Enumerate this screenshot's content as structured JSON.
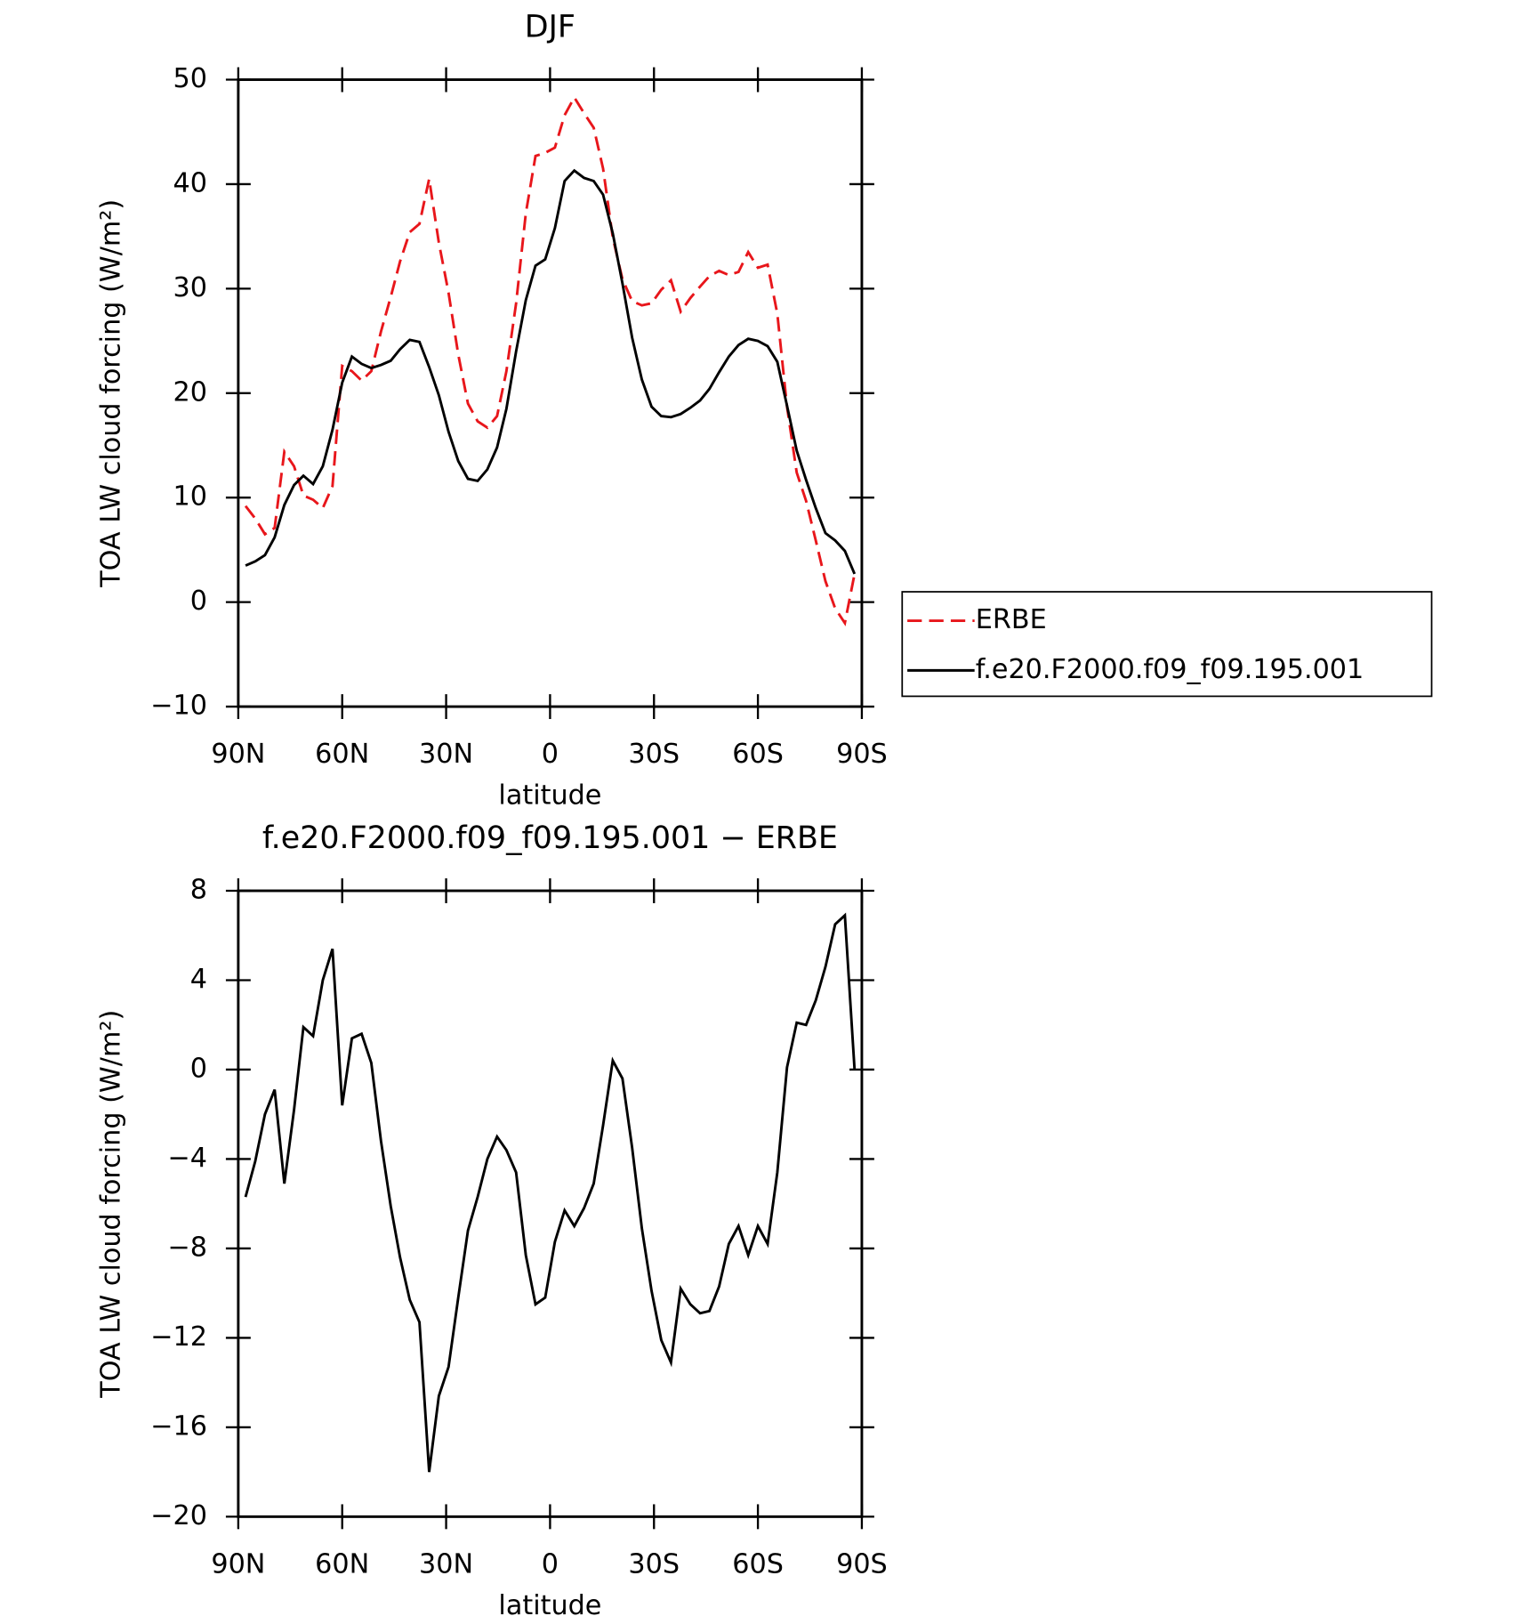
{
  "chart_data": [
    {
      "type": "line",
      "title": "DJF",
      "xlabel": "latitude",
      "ylabel": "TOA LW cloud forcing (W/m²)",
      "x": [
        87.9,
        85.1,
        82.3,
        79.5,
        76.7,
        73.9,
        71.2,
        68.4,
        65.6,
        62.8,
        60.0,
        57.2,
        54.4,
        51.6,
        48.8,
        46.0,
        43.3,
        40.5,
        37.7,
        34.9,
        32.1,
        29.3,
        26.5,
        23.7,
        20.9,
        18.1,
        15.3,
        12.6,
        9.8,
        7.0,
        4.2,
        1.4,
        -1.4,
        -4.2,
        -7.0,
        -9.8,
        -12.6,
        -15.3,
        -18.1,
        -20.9,
        -23.7,
        -26.5,
        -29.3,
        -32.1,
        -34.9,
        -37.7,
        -40.5,
        -43.3,
        -46.0,
        -48.8,
        -51.6,
        -54.4,
        -57.2,
        -60.0,
        -62.8,
        -65.6,
        -68.4,
        -71.2,
        -73.9,
        -76.7,
        -79.5,
        -82.3,
        -85.1,
        -87.9
      ],
      "series": [
        {
          "name": "ERBE",
          "color": "#e8161b",
          "line_style": "dashed",
          "values": [
            9.2,
            8.0,
            6.5,
            7.1,
            14.4,
            13.0,
            10.2,
            9.8,
            9.0,
            11.1,
            22.6,
            22.1,
            21.2,
            22.1,
            25.9,
            29.2,
            32.6,
            35.4,
            36.2,
            40.5,
            34.4,
            29.6,
            23.7,
            19.0,
            17.3,
            16.7,
            17.8,
            22.1,
            28.6,
            37.2,
            42.7,
            43.0,
            43.5,
            46.6,
            48.3,
            46.8,
            45.4,
            41.5,
            34.9,
            30.9,
            28.8,
            28.4,
            28.6,
            29.9,
            30.8,
            27.8,
            29.1,
            30.2,
            31.2,
            31.7,
            31.3,
            31.6,
            33.5,
            32.0,
            32.3,
            27.6,
            18.7,
            12.4,
            9.7,
            5.9,
            2.0,
            -0.6,
            -2.0,
            2.7
          ]
        },
        {
          "name": "f.e20.F2000.f09_f09.195.001",
          "color": "#000000",
          "line_style": "solid",
          "values": [
            3.5,
            3.9,
            4.5,
            6.2,
            9.3,
            11.2,
            12.1,
            11.3,
            13.0,
            16.5,
            21.0,
            23.5,
            22.8,
            22.4,
            22.7,
            23.1,
            24.2,
            25.1,
            24.9,
            22.5,
            19.8,
            16.3,
            13.5,
            11.8,
            11.6,
            12.7,
            14.8,
            18.5,
            24.0,
            28.9,
            32.2,
            32.8,
            35.8,
            40.3,
            41.3,
            40.6,
            40.3,
            39.0,
            35.3,
            30.5,
            25.3,
            21.3,
            18.7,
            17.8,
            17.7,
            18.0,
            18.6,
            19.3,
            20.4,
            22.0,
            23.5,
            24.6,
            25.2,
            25.0,
            24.5,
            23.0,
            18.8,
            14.5,
            11.7,
            9.0,
            6.6,
            5.9,
            4.9,
            2.7
          ]
        }
      ],
      "xlim": [
        90,
        -90
      ],
      "xticks": [
        {
          "value": 90,
          "label": "90N"
        },
        {
          "value": 60,
          "label": "60N"
        },
        {
          "value": 30,
          "label": "30N"
        },
        0,
        {
          "value": -30,
          "label": "30S"
        },
        {
          "value": -60,
          "label": "60S"
        },
        {
          "value": -90,
          "label": "90S"
        }
      ],
      "ylim": [
        -10,
        50
      ],
      "yticks": [
        {
          "value": -10,
          "label": "−10"
        },
        0,
        10,
        20,
        30,
        40,
        50
      ],
      "legend": "right"
    },
    {
      "type": "line",
      "title": "f.e20.F2000.f09_f09.195.001 − ERBE",
      "xlabel": "latitude",
      "ylabel": "TOA LW cloud forcing (W/m²)",
      "x": [
        87.9,
        85.1,
        82.3,
        79.5,
        76.7,
        73.9,
        71.2,
        68.4,
        65.6,
        62.8,
        60.0,
        57.2,
        54.4,
        51.6,
        48.8,
        46.0,
        43.3,
        40.5,
        37.7,
        34.9,
        32.1,
        29.3,
        26.5,
        23.7,
        20.9,
        18.1,
        15.3,
        12.6,
        9.8,
        7.0,
        4.2,
        1.4,
        -1.4,
        -4.2,
        -7.0,
        -9.8,
        -12.6,
        -15.3,
        -18.1,
        -20.9,
        -23.7,
        -26.5,
        -29.3,
        -32.1,
        -34.9,
        -37.7,
        -40.5,
        -43.3,
        -46.0,
        -48.8,
        -51.6,
        -54.4,
        -57.2,
        -60.0,
        -62.8,
        -65.6,
        -68.4,
        -71.2,
        -73.9,
        -76.7,
        -79.5,
        -82.3,
        -85.1,
        -87.9
      ],
      "color": "#000000",
      "values": [
        -5.7,
        -4.1,
        -2.0,
        -0.9,
        -5.1,
        -1.8,
        1.9,
        1.5,
        4.0,
        5.4,
        -1.6,
        1.4,
        1.6,
        0.3,
        -3.2,
        -6.1,
        -8.4,
        -10.3,
        -11.3,
        -18.0,
        -14.6,
        -13.3,
        -10.2,
        -7.2,
        -5.7,
        -4.0,
        -3.0,
        -3.6,
        -4.6,
        -8.3,
        -10.5,
        -10.2,
        -7.7,
        -6.3,
        -7.0,
        -6.2,
        -5.1,
        -2.5,
        0.4,
        -0.4,
        -3.5,
        -7.1,
        -9.9,
        -12.1,
        -13.1,
        -9.8,
        -10.5,
        -10.9,
        -10.8,
        -9.7,
        -7.8,
        -7.0,
        -8.3,
        -7.0,
        -7.8,
        -4.6,
        0.1,
        2.1,
        2.0,
        3.1,
        4.6,
        6.5,
        6.9,
        0.0
      ],
      "xlim": [
        90,
        -90
      ],
      "xticks": [
        {
          "value": 90,
          "label": "90N"
        },
        {
          "value": 60,
          "label": "60N"
        },
        {
          "value": 30,
          "label": "30N"
        },
        0,
        {
          "value": -30,
          "label": "30S"
        },
        {
          "value": -60,
          "label": "60S"
        },
        {
          "value": -90,
          "label": "90S"
        }
      ],
      "ylim": [
        -20,
        8
      ],
      "yticks": [
        {
          "value": -20,
          "label": "−20"
        },
        {
          "value": -16,
          "label": "−16"
        },
        {
          "value": -12,
          "label": "−12"
        },
        {
          "value": -8,
          "label": "−8"
        },
        {
          "value": -4,
          "label": "−4"
        },
        0,
        4,
        8
      ]
    }
  ]
}
